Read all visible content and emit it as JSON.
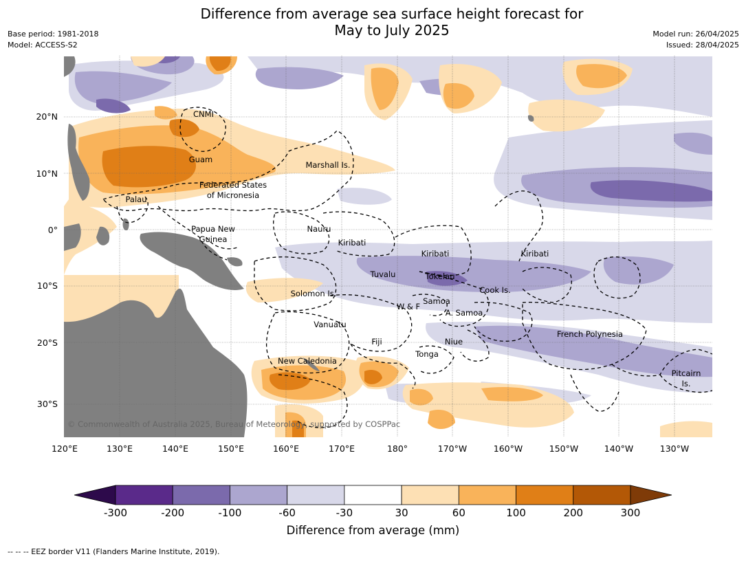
{
  "title_line1": "Difference from average sea surface height forecast for",
  "title_line2": "May to July 2025",
  "meta_left": [
    "Base period: 1981-2018",
    "Model: ACCESS-S2"
  ],
  "meta_right": [
    "Model run: 26/04/2025",
    "Issued: 28/04/2025"
  ],
  "copyright": "© Commonwealth of Australia 2025, Bureau of Meteorology, supported by COSPPac",
  "lon_ticks": [
    "120°E",
    "130°E",
    "140°E",
    "150°E",
    "160°E",
    "170°E",
    "180°",
    "170°W",
    "160°W",
    "150°W",
    "140°W",
    "130°W"
  ],
  "lat_ticks": [
    "20°N",
    "10°N",
    "0°",
    "10°S",
    "20°S",
    "30°S"
  ],
  "places": [
    {
      "name": "CNMI",
      "lines": [
        "CNMI"
      ]
    },
    {
      "name": "Guam",
      "lines": [
        "Guam"
      ]
    },
    {
      "name": "Marshall Is.",
      "lines": [
        "Marshall Is."
      ]
    },
    {
      "name": "Federated States of Micronesia",
      "lines": [
        "Federated States",
        "of Micronesia"
      ]
    },
    {
      "name": "Palau",
      "lines": [
        "Palau"
      ]
    },
    {
      "name": "Papua New Guinea",
      "lines": [
        "Papua New",
        "Guinea"
      ]
    },
    {
      "name": "Nauru",
      "lines": [
        "Nauru"
      ]
    },
    {
      "name": "Kiribati west",
      "lines": [
        "Kiribati"
      ]
    },
    {
      "name": "Kiribati central",
      "lines": [
        "Kiribati"
      ]
    },
    {
      "name": "Kiribati east",
      "lines": [
        "Kiribati"
      ]
    },
    {
      "name": "Tuvalu",
      "lines": [
        "Tuvalu"
      ]
    },
    {
      "name": "Tokelau",
      "lines": [
        "Tokelau"
      ]
    },
    {
      "name": "Cook Is.",
      "lines": [
        "Cook Is."
      ]
    },
    {
      "name": "Solomon Is.",
      "lines": [
        "Solomon Is."
      ]
    },
    {
      "name": "Samoa",
      "lines": [
        "Samoa"
      ]
    },
    {
      "name": "W & F",
      "lines": [
        "W & F"
      ]
    },
    {
      "name": "A. Samoa",
      "lines": [
        "A. Samoa"
      ]
    },
    {
      "name": "Vanuatu",
      "lines": [
        "Vanuatu"
      ]
    },
    {
      "name": "Fiji",
      "lines": [
        "Fiji"
      ]
    },
    {
      "name": "Niue",
      "lines": [
        "Niue"
      ]
    },
    {
      "name": "French Polynesia",
      "lines": [
        "French Polynesia"
      ]
    },
    {
      "name": "Tonga",
      "lines": [
        "Tonga"
      ]
    },
    {
      "name": "New Caledonia",
      "lines": [
        "New Caledonia"
      ]
    },
    {
      "name": "Pitcairn Is.",
      "lines": [
        "Pitcairn",
        "Is."
      ]
    }
  ],
  "colorbar": {
    "title": "Difference from average (mm)",
    "tick_labels": [
      "-300",
      "-200",
      "-100",
      "-60",
      "-30",
      "30",
      "60",
      "100",
      "200",
      "300"
    ],
    "colors": [
      "#2d0a4b",
      "#5a2a8a",
      "#7b6aac",
      "#aca6cf",
      "#d8d8e9",
      "#ffffff",
      "#fde0b4",
      "#f9b35a",
      "#e07f17",
      "#b35806",
      "#7f3b08"
    ],
    "levels": [
      -300,
      -200,
      -100,
      -60,
      -30,
      30,
      60,
      100,
      200,
      300
    ]
  },
  "colors": {
    "land": "#808080",
    "water_neutral": "#ffffff",
    "grid": "#555555",
    "eez": "#000000"
  },
  "footnote": "--  --  -- EEZ border V11 (Flanders Marine Institute, 2019)."
}
